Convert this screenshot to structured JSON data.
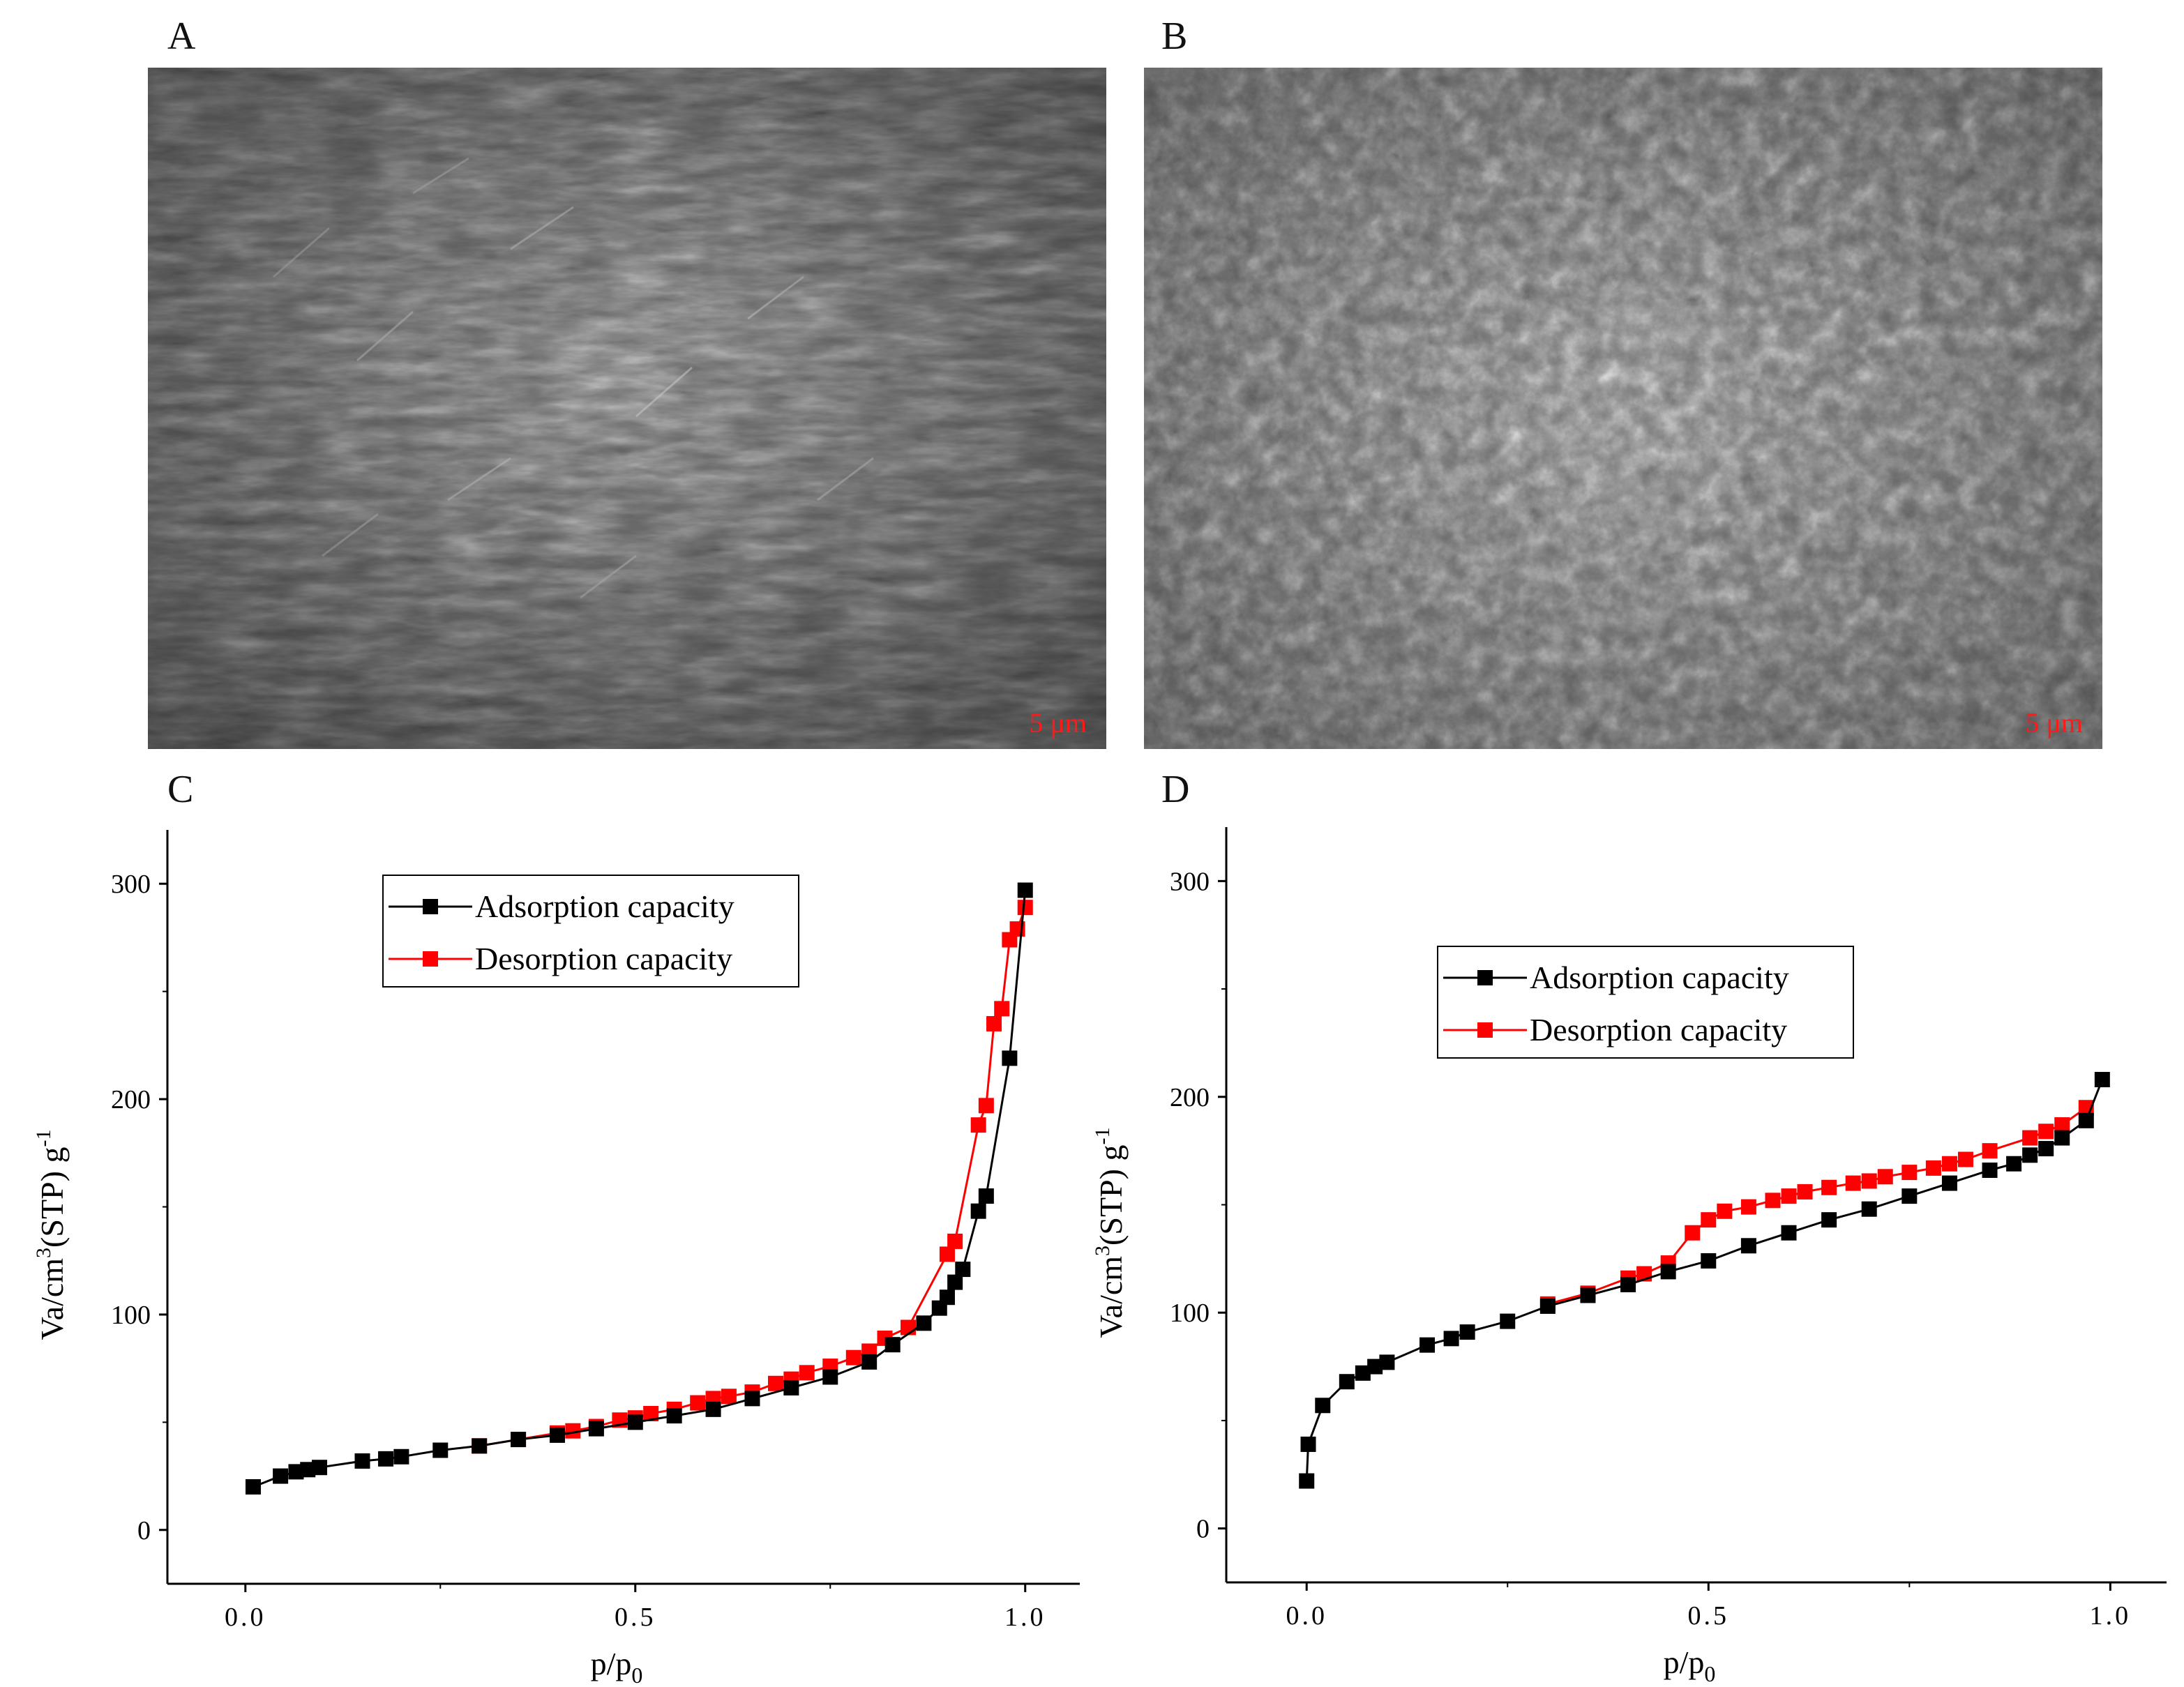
{
  "panels": {
    "a": {
      "label": "A",
      "scale_bar": "5 μm"
    },
    "b": {
      "label": "B",
      "scale_bar": "5 μm"
    },
    "c": {
      "label": "C"
    },
    "d": {
      "label": "D"
    }
  },
  "colors": {
    "adsorption": "#000000",
    "desorption": "#ff0000",
    "scale_text": "#ff1a1a"
  },
  "chart_data": [
    {
      "type": "line",
      "panel": "C",
      "xlabel": "p/p",
      "xlabel_sub": "0",
      "ylabel": "Va/cm",
      "ylabel_sup": "3",
      "ylabel_rest": "(STP) g",
      "ylabel_sup2": "-1",
      "xlim": [
        -0.1,
        1.07
      ],
      "ylim": [
        -25,
        325
      ],
      "xticks": [
        0.0,
        0.5,
        1.0
      ],
      "xtick_labels": [
        "0.0",
        "0.5",
        "1.0"
      ],
      "yticks": [
        0,
        100,
        200,
        300
      ],
      "ytick_labels": [
        "0",
        "100",
        "200",
        "300"
      ],
      "legend_position": "top-center",
      "series": [
        {
          "name": "Adsorption capacity",
          "x": [
            0.01,
            0.045,
            0.065,
            0.08,
            0.095,
            0.15,
            0.18,
            0.2,
            0.25,
            0.3,
            0.35,
            0.4,
            0.45,
            0.5,
            0.55,
            0.6,
            0.65,
            0.7,
            0.75,
            0.8,
            0.83,
            0.87,
            0.89,
            0.9,
            0.91,
            0.92,
            0.94,
            0.95,
            0.98,
            1.0
          ],
          "y": [
            20,
            25,
            27,
            28,
            29,
            32,
            33,
            34,
            37,
            39,
            42,
            44,
            47,
            50,
            53,
            56,
            61,
            66,
            71,
            78,
            86,
            96,
            103,
            108,
            115,
            121,
            148,
            155,
            219,
            297
          ]
        },
        {
          "name": "Desorption capacity",
          "x": [
            0.3,
            0.35,
            0.4,
            0.42,
            0.45,
            0.48,
            0.5,
            0.52,
            0.55,
            0.58,
            0.6,
            0.62,
            0.65,
            0.68,
            0.7,
            0.72,
            0.75,
            0.78,
            0.8,
            0.82,
            0.85,
            0.9,
            0.91,
            0.94,
            0.95,
            0.96,
            0.97,
            0.98,
            0.99,
            1.0
          ],
          "y": [
            39,
            42,
            45,
            46,
            48,
            51,
            52,
            54,
            56,
            59,
            61,
            62,
            64,
            68,
            70,
            73,
            76,
            80,
            83,
            89,
            94,
            128,
            134,
            188,
            197,
            235,
            242,
            274,
            279,
            289
          ]
        }
      ]
    },
    {
      "type": "line",
      "panel": "D",
      "xlabel": "p/p",
      "xlabel_sub": "0",
      "ylabel": "Va/cm",
      "ylabel_sup": "3",
      "ylabel_rest": "(STP) g",
      "ylabel_sup2": "-1",
      "xlim": [
        -0.1,
        1.07
      ],
      "ylim": [
        -25,
        325
      ],
      "xticks": [
        0.0,
        0.5,
        1.0
      ],
      "xtick_labels": [
        "0.0",
        "0.5",
        "1.0"
      ],
      "yticks": [
        0,
        100,
        200,
        300
      ],
      "ytick_labels": [
        "0",
        "100",
        "200",
        "300"
      ],
      "legend_position": "upper-center",
      "series": [
        {
          "name": "Adsorption capacity",
          "x": [
            0.0,
            0.002,
            0.02,
            0.05,
            0.07,
            0.085,
            0.1,
            0.15,
            0.18,
            0.2,
            0.25,
            0.3,
            0.35,
            0.4,
            0.45,
            0.5,
            0.55,
            0.6,
            0.65,
            0.7,
            0.75,
            0.8,
            0.85,
            0.88,
            0.9,
            0.92,
            0.94,
            0.97,
            0.99
          ],
          "y": [
            22,
            39,
            57,
            68,
            72,
            75,
            77,
            85,
            88,
            91,
            96,
            103,
            108,
            113,
            119,
            124,
            131,
            137,
            143,
            148,
            154,
            160,
            166,
            169,
            173,
            176,
            181,
            189,
            208
          ]
        },
        {
          "name": "Desorption capacity",
          "x": [
            0.3,
            0.35,
            0.4,
            0.42,
            0.45,
            0.48,
            0.5,
            0.52,
            0.55,
            0.58,
            0.6,
            0.62,
            0.65,
            0.68,
            0.7,
            0.72,
            0.75,
            0.78,
            0.8,
            0.82,
            0.85,
            0.9,
            0.92,
            0.94,
            0.97
          ],
          "y": [
            104,
            109,
            116,
            118,
            123,
            137,
            143,
            147,
            149,
            152,
            154,
            156,
            158,
            160,
            161,
            163,
            165,
            167,
            169,
            171,
            175,
            181,
            184,
            187,
            195
          ]
        }
      ]
    }
  ]
}
